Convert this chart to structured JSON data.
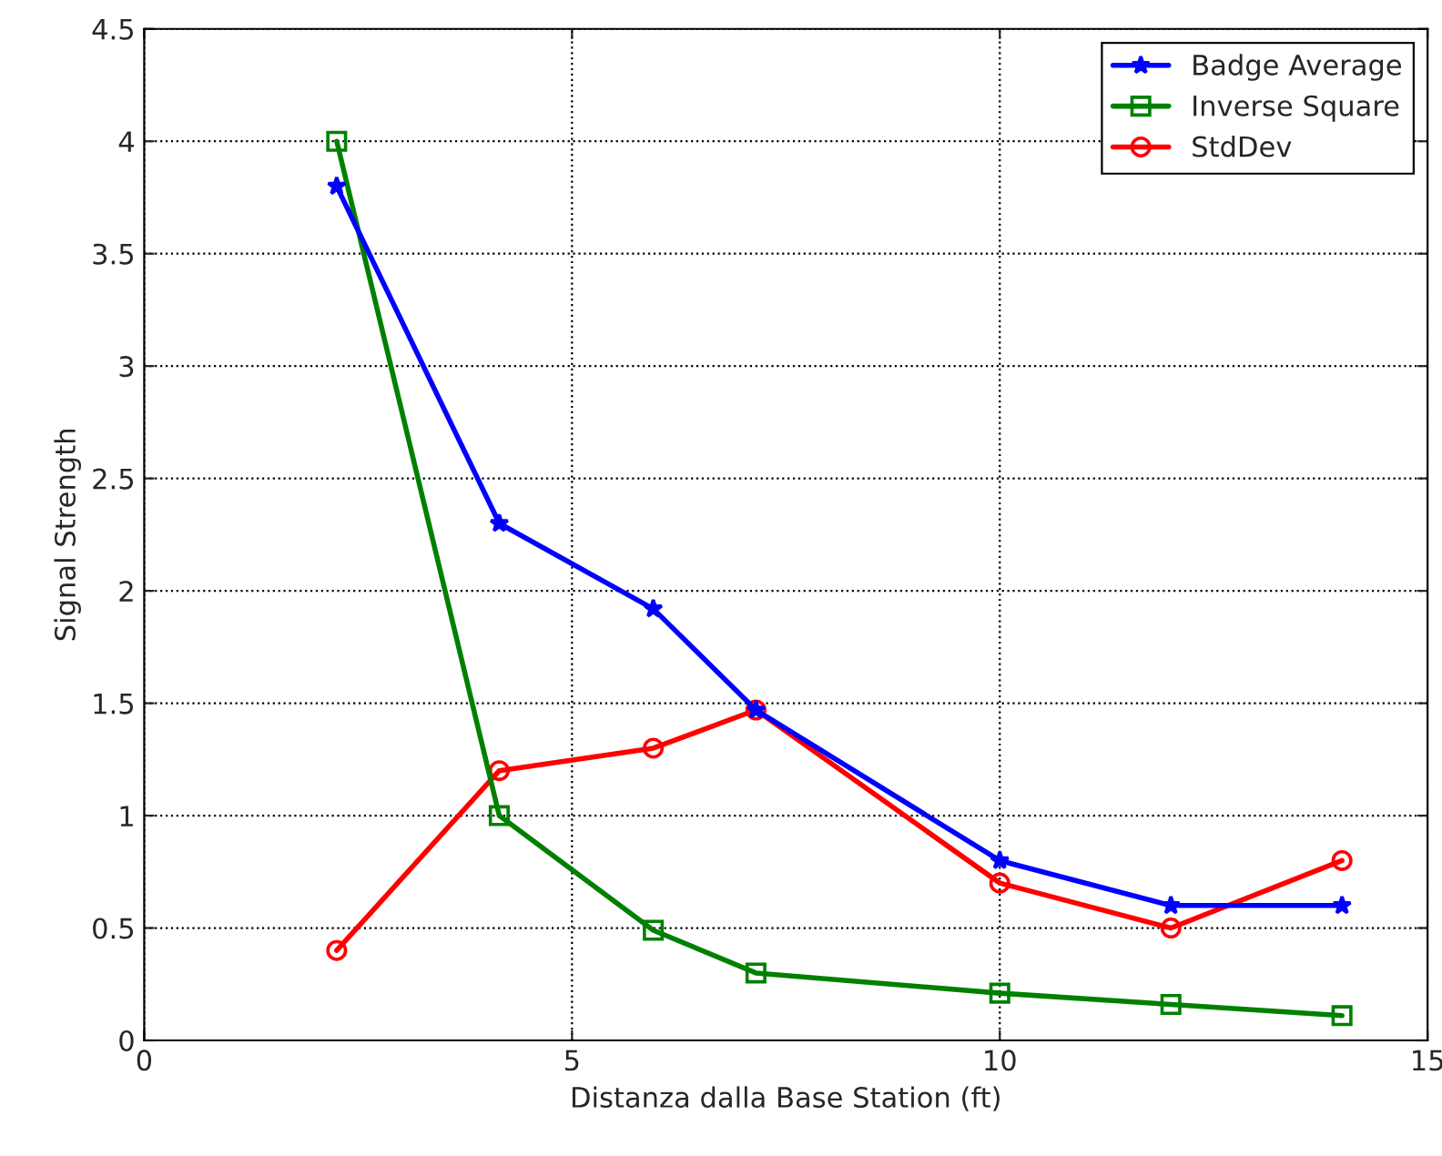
{
  "chart_data": {
    "type": "line",
    "xlabel": "Distanza dalla Base Station (ft)",
    "ylabel": "Signal Strength",
    "x": [
      2.25,
      4.15,
      5.95,
      7.15,
      10,
      12,
      14
    ],
    "series": [
      {
        "name": "Badge Average",
        "color": "#0000ff",
        "marker": "star",
        "values": [
          3.8,
          2.3,
          1.92,
          1.47,
          0.8,
          0.6,
          0.6
        ]
      },
      {
        "name": "Inverse Square",
        "color": "#008000",
        "marker": "square",
        "values": [
          4.0,
          1.0,
          0.49,
          0.3,
          0.21,
          0.16,
          0.11
        ]
      },
      {
        "name": "StdDev",
        "color": "#ff0000",
        "marker": "circle",
        "values": [
          0.4,
          1.2,
          1.3,
          1.47,
          0.7,
          0.5,
          0.8
        ]
      }
    ],
    "xlim": [
      0,
      15
    ],
    "xticks": [
      0,
      5,
      10,
      15
    ],
    "ylim": [
      0,
      4.5
    ],
    "yticks": [
      0,
      0.5,
      1,
      1.5,
      2,
      2.5,
      3,
      3.5,
      4,
      4.5
    ],
    "grid": true,
    "legend": "top right",
    "line_style": "solid"
  }
}
